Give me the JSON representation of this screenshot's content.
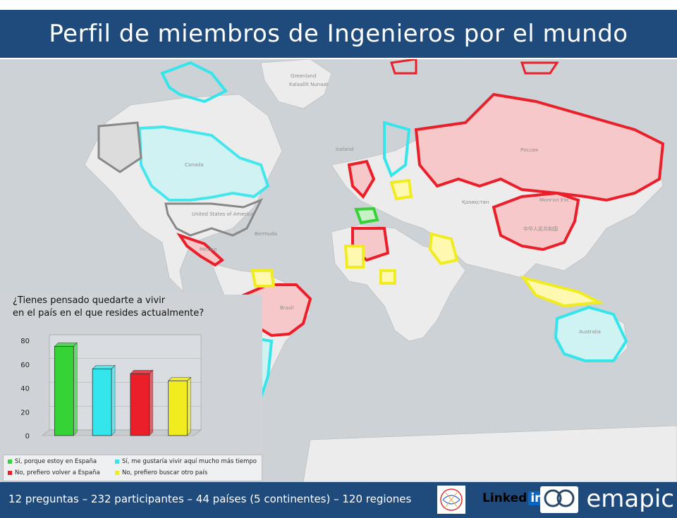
{
  "title": "Perfil de miembros de Ingenieros por el mundo",
  "footer": {
    "summary": "12 preguntas – 232 participantes – 44 países (5 continentes) – 120 regiones",
    "linkedin_text": "Linked",
    "linkedin_in": "in",
    "emapic": "emapic"
  },
  "colors": {
    "green": "#35d335",
    "cyan": "#34e6ec",
    "red": "#ea1f2a",
    "yellow": "#f1ec1f",
    "grey": "#888888",
    "header_bg": "#1f4a7c"
  },
  "map_labels": [
    "Canada",
    "United States of America",
    "Россия",
    "Brasil",
    "Australia",
    "Қазақстан",
    "中华人民共和国",
    "Монгол Улс",
    "México",
    "Bermuda",
    "Greenland",
    "Iceland",
    "Kalaallit Nunaat"
  ],
  "chart": {
    "question_line1": "¿Tienes pensado quedarte a vivir",
    "question_line2": "en el país en el que resides actualmente?"
  },
  "chart_data": {
    "type": "bar",
    "title": "¿Tienes pensado quedarte a vivir en el país en el que resides actualmente?",
    "categories": [
      "Sí, porque estoy en España",
      "Sí, me gustaría vivir aquí mucho más tiempo",
      "No, prefiero volver a España",
      "No, prefiero buscar otro país"
    ],
    "values": [
      75,
      56,
      52,
      46
    ],
    "colors": [
      "#35d335",
      "#34e6ec",
      "#ea1f2a",
      "#f1ec1f"
    ],
    "ylim": [
      0,
      80
    ],
    "yticks": [
      "0",
      "20",
      "40",
      "60",
      "80"
    ],
    "grid": true,
    "legend_position": "bottom"
  }
}
